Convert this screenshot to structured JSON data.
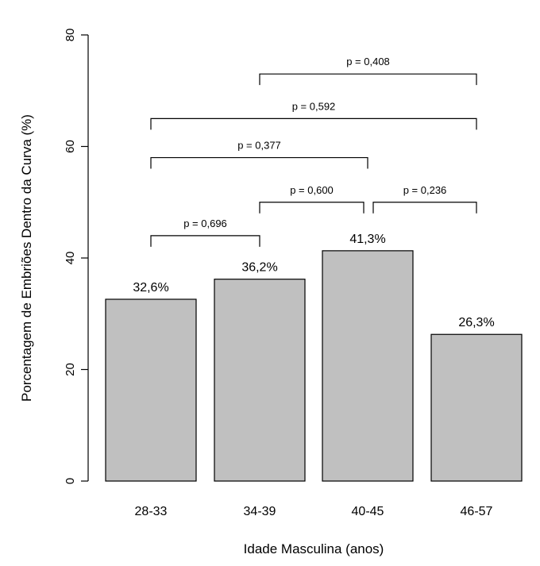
{
  "chart_data": {
    "type": "bar",
    "categories": [
      "28-33",
      "34-39",
      "40-45",
      "46-57"
    ],
    "values": [
      32.6,
      36.2,
      41.3,
      26.3
    ],
    "value_labels": [
      "32,6%",
      "36,2%",
      "41,3%",
      "26,3%"
    ],
    "title": "",
    "xlabel": "Idade Masculina (anos)",
    "ylabel": "Porcentagem de Embriões Dentro da Curva (%)",
    "ylim": [
      0,
      80
    ],
    "yticks": [
      "0",
      "20",
      "40",
      "60",
      "80"
    ],
    "grid": false,
    "bar_color": "#c0c0c0",
    "comparisons": [
      {
        "from": 0,
        "to": 1,
        "label": "p = 0,696",
        "y": 44
      },
      {
        "from": 1,
        "to": 2,
        "label": "p = 0,600",
        "y": 50
      },
      {
        "from": 2,
        "to": 3,
        "label": "p = 0,236",
        "y": 50
      },
      {
        "from": 0,
        "to": 2,
        "label": "p = 0,377",
        "y": 58
      },
      {
        "from": 0,
        "to": 3,
        "label": "p = 0,592",
        "y": 65
      },
      {
        "from": 1,
        "to": 3,
        "label": "p = 0,408",
        "y": 73
      }
    ]
  }
}
